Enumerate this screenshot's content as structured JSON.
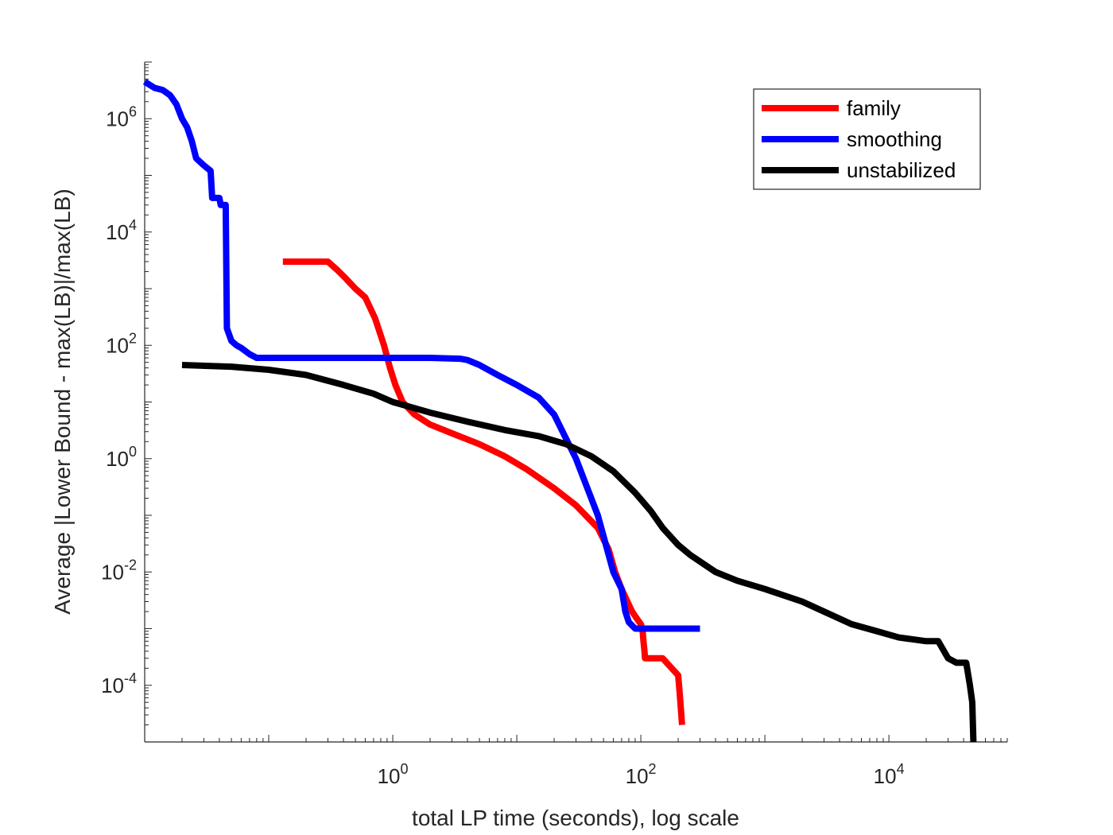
{
  "chart_data": {
    "type": "line",
    "title": "",
    "xlabel": "total LP time (seconds), log scale",
    "ylabel": "Average |Lower Bound - max(LB)|/max(LB)",
    "x_scale": "log",
    "y_scale": "log",
    "xlim": [
      0.01,
      90000
    ],
    "ylim": [
      1e-05,
      10000000
    ],
    "x_ticks": [
      {
        "value": 1,
        "base": "10",
        "exp": "0"
      },
      {
        "value": 100,
        "base": "10",
        "exp": "2"
      },
      {
        "value": 10000,
        "base": "10",
        "exp": "4"
      }
    ],
    "y_ticks": [
      {
        "value": 0.0001,
        "base": "10",
        "exp": "-4"
      },
      {
        "value": 0.01,
        "base": "10",
        "exp": "-2"
      },
      {
        "value": 1,
        "base": "10",
        "exp": "0"
      },
      {
        "value": 100,
        "base": "10",
        "exp": "2"
      },
      {
        "value": 10000,
        "base": "10",
        "exp": "4"
      },
      {
        "value": 1000000,
        "base": "10",
        "exp": "6"
      }
    ],
    "grid": false,
    "legend_position": "top-right",
    "series": [
      {
        "name": "family",
        "color": "#ff0000",
        "x": [
          0.13,
          0.3,
          0.36,
          0.42,
          0.5,
          0.6,
          0.72,
          0.85,
          0.95,
          1.05,
          1.2,
          1.5,
          2,
          3,
          5,
          8,
          12,
          20,
          30,
          45,
          55,
          62,
          70,
          78,
          85,
          93,
          100,
          103,
          105,
          107,
          108,
          140,
          150,
          200,
          205,
          210,
          215
        ],
        "y": [
          3000,
          3000,
          2100,
          1500,
          1000,
          700,
          300,
          100,
          40,
          20,
          10,
          6,
          4,
          2.8,
          1.8,
          1.1,
          0.65,
          0.3,
          0.15,
          0.06,
          0.025,
          0.01,
          0.005,
          0.003,
          0.002,
          0.0015,
          0.0012,
          0.001,
          0.0006,
          0.0004,
          0.0003,
          0.0003,
          0.0003,
          0.00015,
          8e-05,
          4e-05,
          2e-05
        ]
      },
      {
        "name": "smoothing",
        "color": "#0000ff",
        "x": [
          0.01,
          0.012,
          0.014,
          0.016,
          0.018,
          0.02,
          0.022,
          0.024,
          0.026,
          0.03,
          0.034,
          0.035,
          0.04,
          0.041,
          0.045,
          0.046,
          0.046,
          0.05,
          0.055,
          0.06,
          0.07,
          0.08,
          0.1,
          0.3,
          1,
          2,
          3.5,
          4,
          5,
          7,
          10,
          15,
          20,
          30,
          45,
          60,
          70,
          75,
          80,
          90,
          100,
          150,
          300
        ],
        "y": [
          4500000,
          3500000,
          3200000,
          2600000,
          1800000,
          1000000,
          700000,
          400000,
          200000,
          150000,
          120000,
          40000,
          40000,
          30000,
          30000,
          200,
          200,
          120,
          100,
          90,
          70,
          60,
          60,
          60,
          60,
          60,
          58,
          55,
          45,
          30,
          20,
          12,
          6,
          1,
          0.1,
          0.01,
          0.005,
          0.002,
          0.0013,
          0.001,
          0.001,
          0.001,
          0.001
        ]
      },
      {
        "name": "unstabilized",
        "color": "#000000",
        "x": [
          0.02,
          0.05,
          0.1,
          0.2,
          0.4,
          0.7,
          1,
          2,
          4,
          8,
          15,
          25,
          40,
          60,
          90,
          120,
          150,
          200,
          250,
          400,
          600,
          1000,
          2000,
          3000,
          5000,
          8000,
          12000,
          20000,
          25000,
          30000,
          35000,
          40000,
          42000,
          45000,
          47000,
          48000
        ],
        "y": [
          45,
          42,
          37,
          30,
          20,
          14,
          10,
          6.5,
          4.5,
          3.2,
          2.5,
          1.8,
          1.1,
          0.6,
          0.25,
          0.12,
          0.06,
          0.03,
          0.02,
          0.01,
          0.007,
          0.005,
          0.003,
          0.002,
          0.0012,
          0.0009,
          0.0007,
          0.0006,
          0.0006,
          0.0003,
          0.00025,
          0.00025,
          0.00025,
          0.0001,
          5e-05,
          1e-05
        ]
      }
    ]
  }
}
